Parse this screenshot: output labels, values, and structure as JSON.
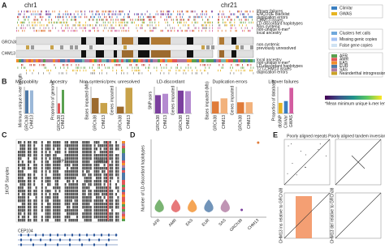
{
  "panel_a": {
    "label": "A",
    "chr1": "chr1",
    "chr21": "chr21",
    "tracks": [
      "GRCh38",
      "CHM13"
    ],
    "labels_top": [
      "liftover failures",
      "ENCODE blacklist",
      "duplication errors",
      "CHM13 issues",
      "LD-discordant haplotypes",
      "Non-syntenic",
      "non-unique k-mer*",
      "local ancestry"
    ],
    "labels_mid": [
      "non-syntenic",
      "previously unresolved"
    ],
    "labels_bottom": [
      "local ancestry",
      "non-unique k-mer*",
      "LD-discordant haplotypes",
      "T2T-CHM13 issues",
      "duplication errors"
    ],
    "legend_1": [
      "ClinVar",
      "GWAS"
    ],
    "legend_2": [
      "Clusters het calls",
      "Missing genic copies",
      "False gene copies"
    ],
    "legend_3": [
      "AFR",
      "AMR",
      "EAS",
      "EUR",
      "SAS",
      "Neanderthal introgression"
    ]
  },
  "panel_b": {
    "label": "B",
    "plots": [
      {
        "title": "Mappability",
        "y_labels": [
          "Minimum unique k-mer length"
        ],
        "x": [
          "GRCh38",
          "CHM13"
        ]
      },
      {
        "title": "Ancestry",
        "y_labels": [
          "Proportion of genome"
        ],
        "x": [
          "GRCh38",
          "CHM13"
        ]
      },
      {
        "title": "Non-syntenic/prev. unresolved",
        "y_labels": [
          "Bases impacted (Mb)",
          "Genes impacted"
        ],
        "x": [
          "GRCh38",
          "CHM13"
        ]
      },
      {
        "title": "LD-discordant",
        "y_labels": [
          "SNP pairs",
          "Genes impacted"
        ],
        "x": [
          "GRCh38",
          "CHM13"
        ]
      },
      {
        "title": "Duplication errors",
        "y_labels": [
          "Bases impacted (Mb)",
          "Genes impacted"
        ],
        "x": [
          "GRCh38",
          "CHM13"
        ]
      },
      {
        "title": "Liftover failures",
        "y_labels": [
          "Proportion of database"
        ],
        "x": [
          "dbSNP",
          "ClinVar",
          "GWAS"
        ]
      }
    ],
    "colorbar_note": "*Mean minimum unique k-mer length per 100 kb"
  },
  "panel_c": {
    "label": "C",
    "regions": [
      "RP1",
      "RP13"
    ],
    "y_label": "1KGP Samples",
    "gene": "CEP104"
  },
  "panel_d": {
    "label": "D",
    "y_label": "Number of LD-discordant haplotypes",
    "x": [
      "AFR",
      "AMR",
      "EAS",
      "EUR",
      "SAS",
      "GRCh38",
      "CHM13"
    ]
  },
  "panel_e": {
    "label": "E",
    "titles": [
      "Poorly aligned repeats",
      "Poorly aligned tandem inversions"
    ],
    "y_labels": [
      "CHM13 ins relative to GRCh38",
      "CHM13 del relative to GRCh38"
    ]
  }
}
